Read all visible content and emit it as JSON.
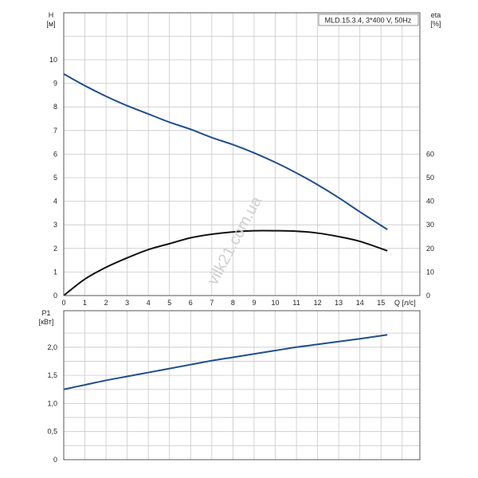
{
  "chart_data": [
    {
      "type": "line",
      "title": "MLD.15.3.4, 3*400 V, 50Hz",
      "xlabel": "Q [л/с]",
      "ylabel": "H",
      "ylabel_unit": "[м]",
      "y2label": "eta",
      "y2label_unit": "[%]",
      "xlim": [
        0,
        17
      ],
      "ylim": [
        0,
        11.5
      ],
      "y2lim": [
        0,
        115
      ],
      "x_ticks": [
        "0",
        "1",
        "2",
        "3",
        "4",
        "5",
        "6",
        "7",
        "8",
        "9",
        "10",
        "11",
        "12",
        "13",
        "14",
        "15"
      ],
      "y_ticks": [
        "0",
        "1",
        "2",
        "3",
        "4",
        "5",
        "6",
        "7",
        "8",
        "9",
        "10"
      ],
      "y2_ticks": [
        "0",
        "10",
        "20",
        "30",
        "40",
        "50",
        "60"
      ],
      "grid": true,
      "series": [
        {
          "axis": "left",
          "color": "#1f4e8c",
          "x": [
            0,
            1,
            2,
            3,
            4,
            5,
            6,
            7,
            8,
            9,
            10,
            11,
            12,
            13,
            14,
            15.3
          ],
          "y": [
            9.4,
            8.9,
            8.45,
            8.05,
            7.7,
            7.35,
            7.05,
            6.7,
            6.4,
            6.05,
            5.65,
            5.2,
            4.7,
            4.15,
            3.55,
            2.8
          ]
        },
        {
          "axis": "right",
          "color": "#111111",
          "x": [
            0,
            1,
            2,
            3,
            4,
            5,
            6,
            7,
            8,
            9,
            10,
            11,
            12,
            13,
            14,
            15.3
          ],
          "y": [
            0,
            7.0,
            12.0,
            16.0,
            19.5,
            22.0,
            24.5,
            26.0,
            27.0,
            27.5,
            27.5,
            27.3,
            26.5,
            25.0,
            23.0,
            19.0
          ]
        }
      ]
    },
    {
      "type": "line",
      "title": "",
      "xlabel": "",
      "ylabel": "P1",
      "ylabel_unit": "[кВт]",
      "xlim": [
        0,
        17
      ],
      "ylim": [
        0,
        2.5
      ],
      "y_ticks": [
        "0",
        "0,5",
        "1,0",
        "1,5",
        "2,0"
      ],
      "y_tick_values": [
        0,
        0.5,
        1.0,
        1.5,
        2.0
      ],
      "grid": true,
      "series": [
        {
          "axis": "left",
          "color": "#1f4e8c",
          "x": [
            0,
            1,
            2,
            3,
            4,
            5,
            6,
            7,
            8,
            9,
            10,
            11,
            12,
            13,
            14,
            15.3
          ],
          "y": [
            1.25,
            1.33,
            1.41,
            1.48,
            1.55,
            1.62,
            1.69,
            1.76,
            1.82,
            1.88,
            1.94,
            2.0,
            2.05,
            2.1,
            2.15,
            2.22
          ]
        }
      ]
    }
  ],
  "watermark": "vilk21.com.ua"
}
